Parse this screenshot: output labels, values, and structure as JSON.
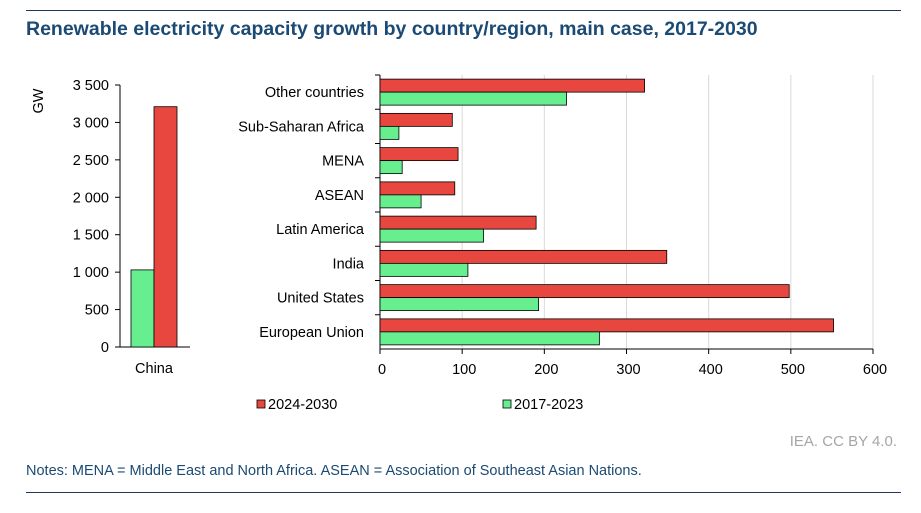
{
  "title": "Renewable electricity capacity growth by country/region, main case, 2017-2030",
  "credit": "IEA. CC BY 4.0.",
  "notes": "Notes: MENA = Middle East and North Africa. ASEAN = Association of Southeast Asian Nations.",
  "colors": {
    "s2024": "#e8473f",
    "s2017": "#66ee8f",
    "grid": "#d9d9d9",
    "axis": "#000000"
  },
  "chart_data": [
    {
      "type": "bar",
      "orientation": "vertical",
      "ylabel": "GW",
      "ylim": [
        0,
        3500
      ],
      "yticks": [
        0,
        500,
        1000,
        1500,
        2000,
        2500,
        3000,
        3500
      ],
      "ytick_labels": [
        "0",
        "500",
        "1 000",
        "1 500",
        "2 000",
        "2 500",
        "3 000",
        "3 500"
      ],
      "categories": [
        "China"
      ],
      "series": [
        {
          "name": "2017-2023",
          "values": [
            1030
          ]
        },
        {
          "name": "2024-2030",
          "values": [
            3210
          ]
        }
      ]
    },
    {
      "type": "bar",
      "orientation": "horizontal",
      "xlim": [
        0,
        600
      ],
      "xticks": [
        0,
        100,
        200,
        300,
        400,
        500,
        600
      ],
      "xtick_labels": [
        "0",
        "100",
        "200",
        "300",
        "400",
        "500",
        "600"
      ],
      "grid": true,
      "categories": [
        "Other countries",
        "Sub-Saharan Africa",
        "MENA",
        "ASEAN",
        "Latin America",
        "India",
        "United States",
        "European Union"
      ],
      "series": [
        {
          "name": "2024-2030",
          "values": [
            322,
            88,
            95,
            91,
            190,
            349,
            498,
            552
          ]
        },
        {
          "name": "2017-2023",
          "values": [
            227,
            23,
            27,
            50,
            126,
            107,
            193,
            267
          ]
        }
      ],
      "legend": {
        "placement": "bottom",
        "entries": [
          "2024-2030",
          "2017-2023"
        ]
      }
    }
  ]
}
